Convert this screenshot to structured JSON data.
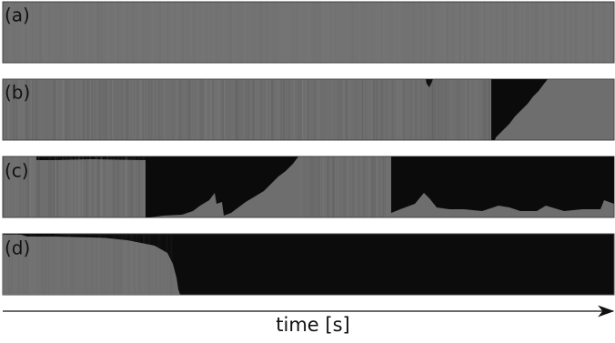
{
  "panels": [
    {
      "label": "(a)"
    },
    {
      "label": "(b)"
    },
    {
      "label": "(c)"
    },
    {
      "label": "(d)"
    }
  ],
  "axis": {
    "label": "time [s]"
  }
}
